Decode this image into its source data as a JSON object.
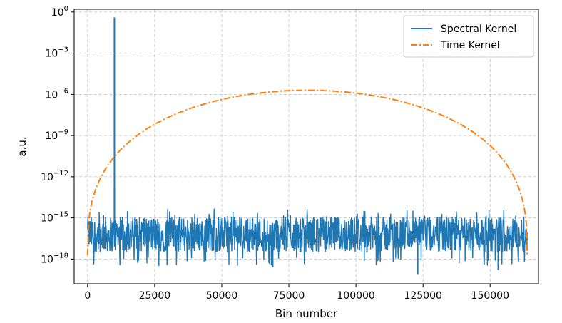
{
  "chart_data": {
    "type": "line",
    "xlabel": "Bin number",
    "ylabel": "a.u.",
    "yscale": "log",
    "xlim": [
      -5000,
      168000
    ],
    "ylim_exp": [
      -19.8,
      0.2
    ],
    "xticks": [
      {
        "value": 0,
        "label": "0"
      },
      {
        "value": 25000,
        "label": "25000"
      },
      {
        "value": 50000,
        "label": "50000"
      },
      {
        "value": 75000,
        "label": "75000"
      },
      {
        "value": 100000,
        "label": "100000"
      },
      {
        "value": 125000,
        "label": "125000"
      },
      {
        "value": 150000,
        "label": "150000"
      }
    ],
    "yticks": [
      {
        "exp": 0,
        "base": "10",
        "sup": "0"
      },
      {
        "exp": -3,
        "base": "10",
        "sup": "−3"
      },
      {
        "exp": -6,
        "base": "10",
        "sup": "−6"
      },
      {
        "exp": -9,
        "base": "10",
        "sup": "−9"
      },
      {
        "exp": -12,
        "base": "10",
        "sup": "−12"
      },
      {
        "exp": -15,
        "base": "10",
        "sup": "−15"
      },
      {
        "exp": -18,
        "base": "10",
        "sup": "−18"
      }
    ],
    "grid": true,
    "legend_position": "top-right",
    "series": [
      {
        "name": "Spectral Kernel",
        "color": "#1f77b4",
        "style": "solid",
        "x_range": [
          0,
          163840
        ],
        "noise_floor_exp": [
          -18.5,
          -14.3
        ],
        "typical_exp": -16.2,
        "spikes": [
          {
            "x": 10000,
            "y_exp": -0.4
          },
          {
            "x": 10000,
            "y_exp": -12.8
          },
          {
            "x": 123000,
            "y_exp": -19.1
          },
          {
            "x": 153000,
            "y_exp": -18.8
          },
          {
            "x": 69000,
            "y_exp": -18.6
          }
        ]
      },
      {
        "name": "Time Kernel",
        "color": "#ff7f0e",
        "style": "dashdot",
        "x_range": [
          0,
          163840
        ],
        "peak_x": 81920,
        "peak_y_exp": -5.7,
        "edge_y_exp": -17.7
      }
    ]
  }
}
